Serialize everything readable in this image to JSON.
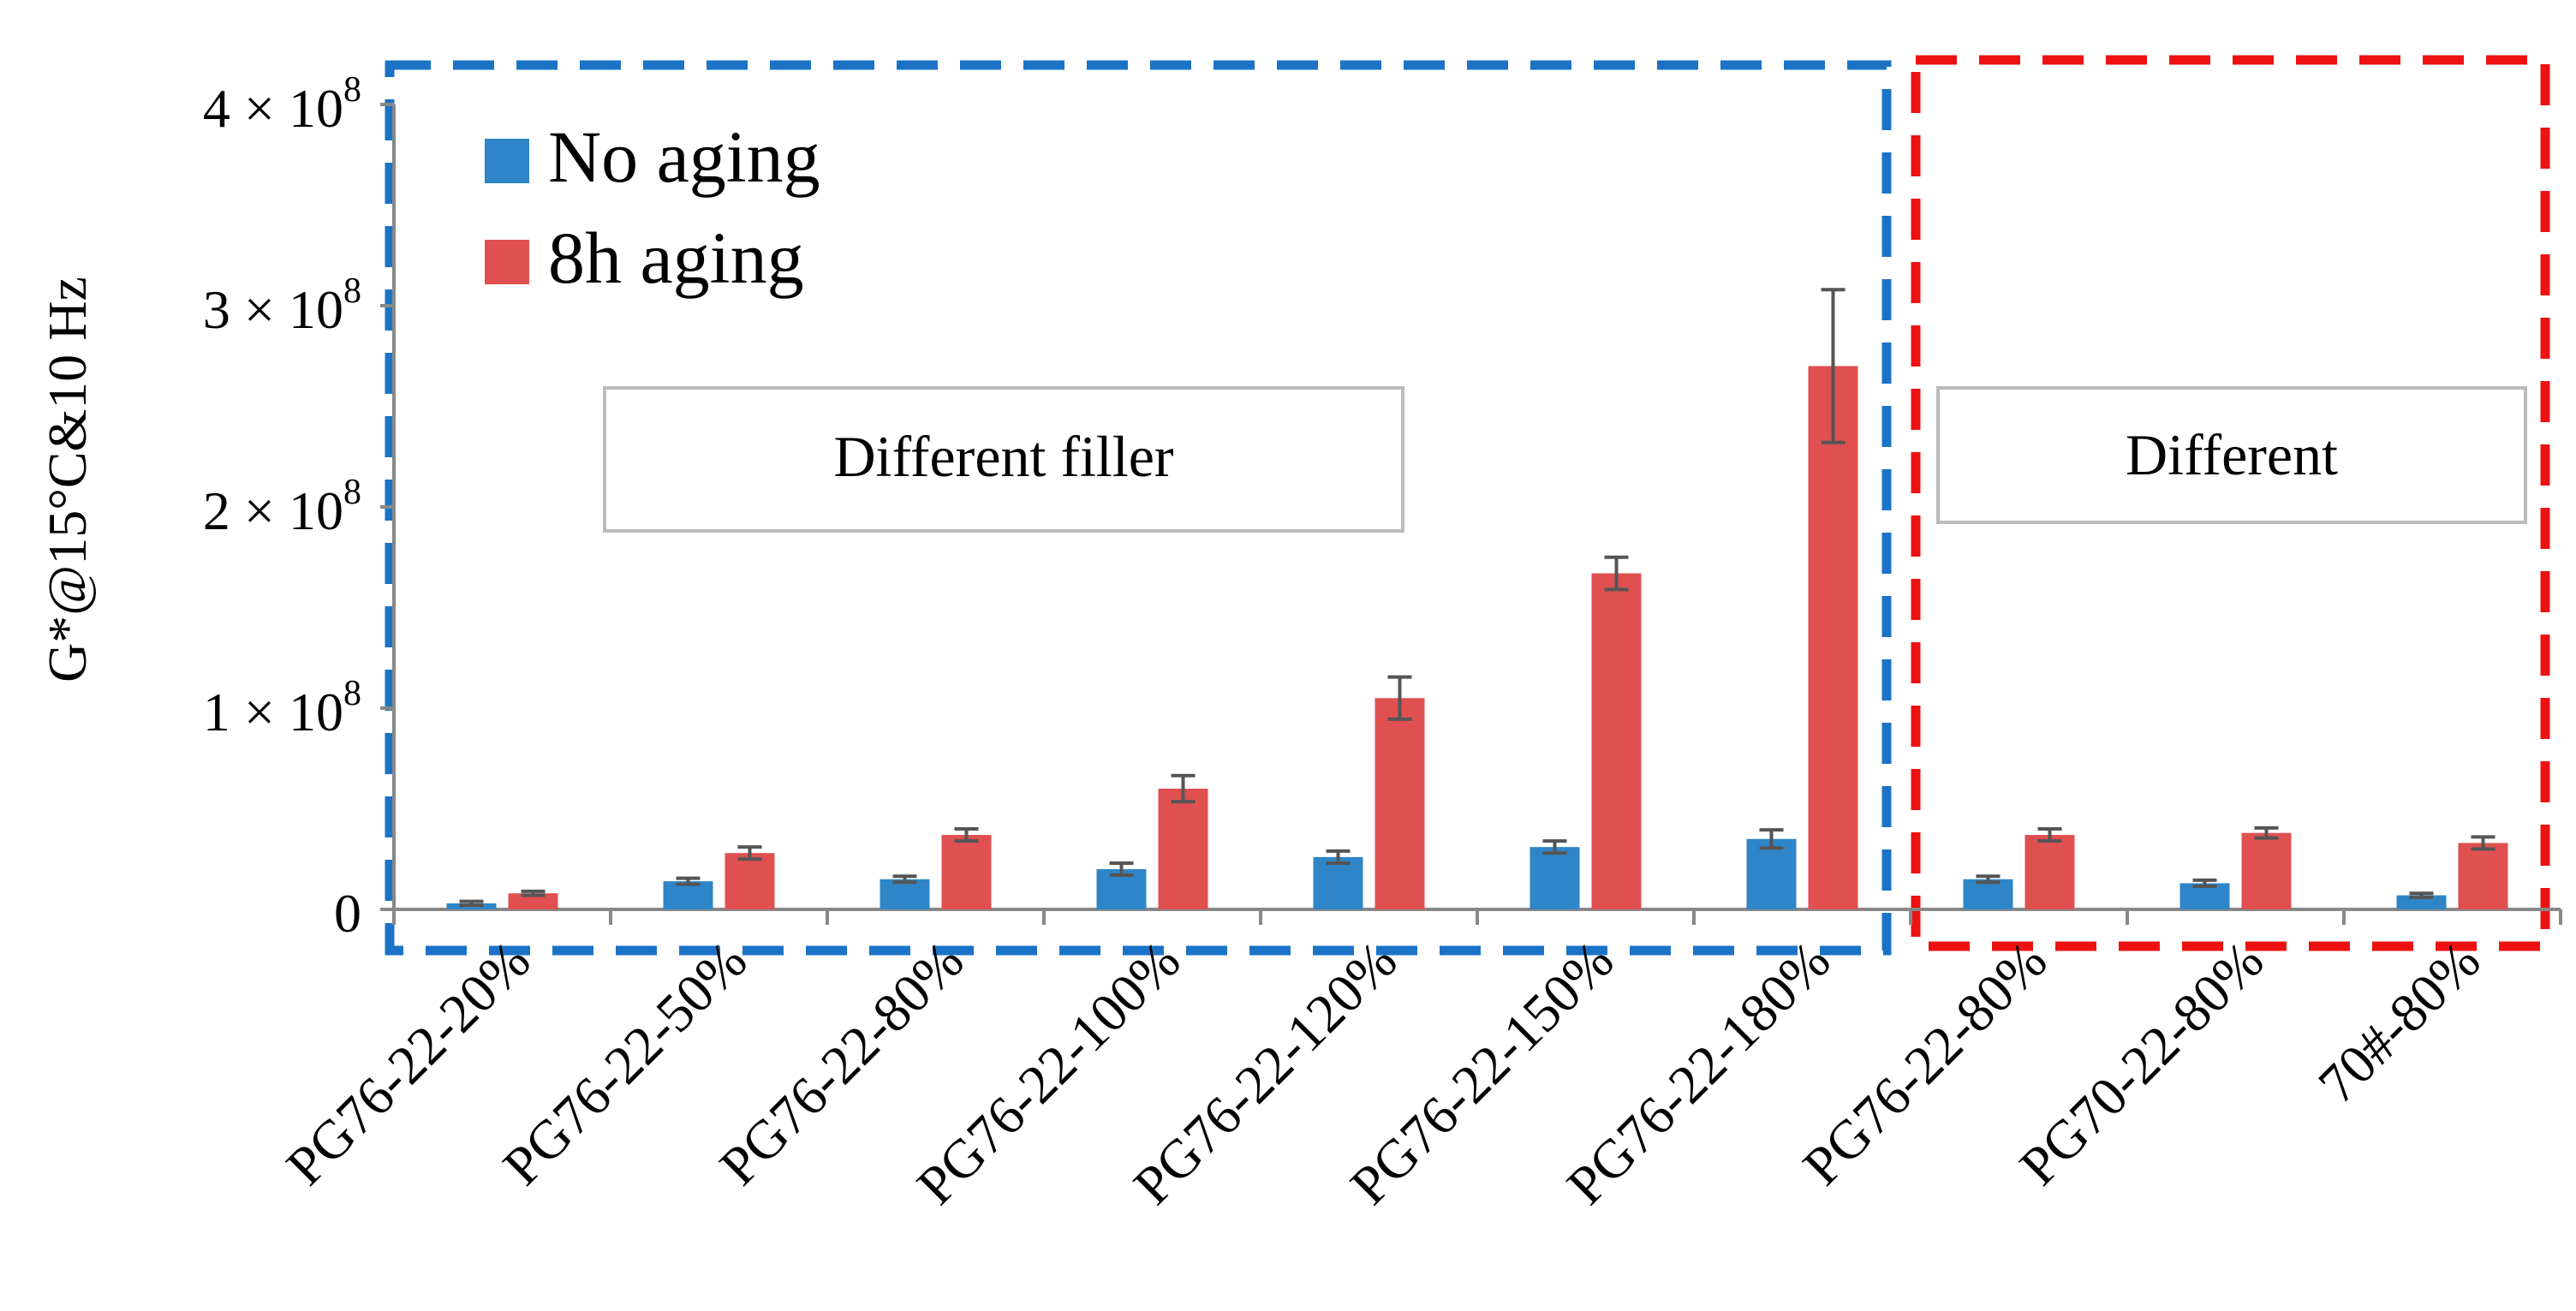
{
  "chart_data": {
    "type": "bar",
    "title": "",
    "xlabel": "",
    "ylabel": "G*@15°C&10 Hz",
    "ylim": [
      0,
      400000000
    ],
    "y_ticks": [
      {
        "value": 0,
        "mantissa": "0",
        "exponent": ""
      },
      {
        "value": 100000000,
        "mantissa": "1 × 10",
        "exponent": "8"
      },
      {
        "value": 200000000,
        "mantissa": "2 × 10",
        "exponent": "8"
      },
      {
        "value": 300000000,
        "mantissa": "3 × 10",
        "exponent": "8"
      },
      {
        "value": 400000000,
        "mantissa": "4 × 10",
        "exponent": "8"
      }
    ],
    "categories": [
      "PG76-22-20%",
      "PG76-22-50%",
      "PG76-22-80%",
      "PG76-22-100%",
      "PG76-22-120%",
      "PG76-22-150%",
      "PG76-22-180%",
      "PG76-22-80%",
      "PG70-22-80%",
      "70#-80%"
    ],
    "series": [
      {
        "name": "No aging",
        "color": "#2e86c8",
        "values": [
          3000000,
          14000000,
          15000000,
          20000000,
          26000000,
          31000000,
          35000000,
          15000000,
          13000000,
          7000000
        ],
        "errors": [
          1000000,
          1500000,
          1500000,
          3000000,
          3000000,
          3000000,
          4500000,
          1500000,
          1500000,
          1000000
        ]
      },
      {
        "name": "8h aging",
        "color": "#e05050",
        "values": [
          8000000,
          28000000,
          37000000,
          60000000,
          105000000,
          167000000,
          270000000,
          37000000,
          38000000,
          33000000
        ],
        "errors": [
          1000000,
          3000000,
          3000000,
          6500000,
          10500000,
          8000000,
          38000000,
          3000000,
          2500000,
          3000000
        ]
      }
    ],
    "legend_position": "top-left",
    "grid": false,
    "annotations": [
      {
        "text": "Different filler",
        "group": "filler",
        "frame_color": "#1a73c7"
      },
      {
        "text": "Different",
        "group": "binder",
        "frame_color": "#ee1111"
      }
    ],
    "error_bar_color": "#555555"
  }
}
